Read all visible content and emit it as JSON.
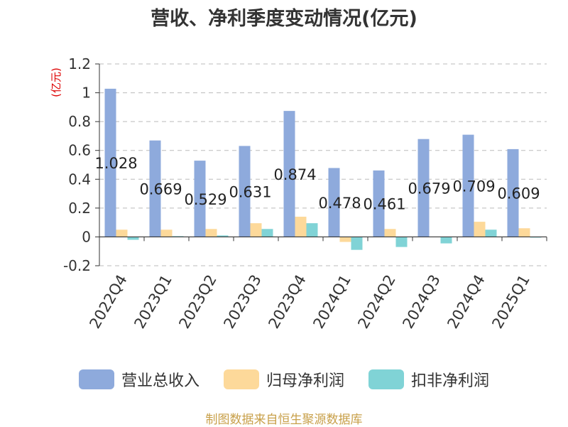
{
  "title": "营收、净利季度变动情况(亿元)",
  "source": "制图数据来自恒生聚源数据库",
  "colors": {
    "营业总收入": "#8eaadc",
    "归母净利润": "#fdd99a",
    "扣非净利润": "#80d3d6",
    "axis": "#333333",
    "grid": "#bbbbbb",
    "unit": "#dd0000"
  },
  "chart_data": {
    "type": "bar",
    "ylabel": "(亿元)",
    "ylim": [
      -0.2,
      1.2
    ],
    "yticks": [
      "-0.2",
      "0",
      "0.2",
      "0.4",
      "0.6",
      "0.8",
      "1",
      "1.2"
    ],
    "grid": true,
    "legend_position": "bottom",
    "categories": [
      "2022Q4",
      "2023Q1",
      "2023Q2",
      "2023Q3",
      "2023Q4",
      "2024Q1",
      "2024Q2",
      "2024Q3",
      "2024Q4",
      "2025Q1"
    ],
    "series": [
      {
        "name": "营业总收入",
        "values": [
          1.028,
          0.669,
          0.529,
          0.631,
          0.874,
          0.478,
          0.461,
          0.679,
          0.709,
          0.609
        ]
      },
      {
        "name": "归母净利润",
        "values": [
          0.05,
          0.05,
          0.055,
          0.095,
          0.14,
          -0.035,
          0.055,
          0.0,
          0.105,
          0.06
        ]
      },
      {
        "name": "扣非净利润",
        "values": [
          -0.02,
          0.005,
          0.01,
          0.055,
          0.095,
          -0.09,
          -0.07,
          -0.045,
          0.05,
          -0.005
        ]
      }
    ],
    "data_labels": [
      "1.028",
      "0.669",
      "0.529",
      "0.631",
      "0.874",
      "0.478",
      "0.461",
      "0.679",
      "0.709",
      "0.609"
    ]
  }
}
